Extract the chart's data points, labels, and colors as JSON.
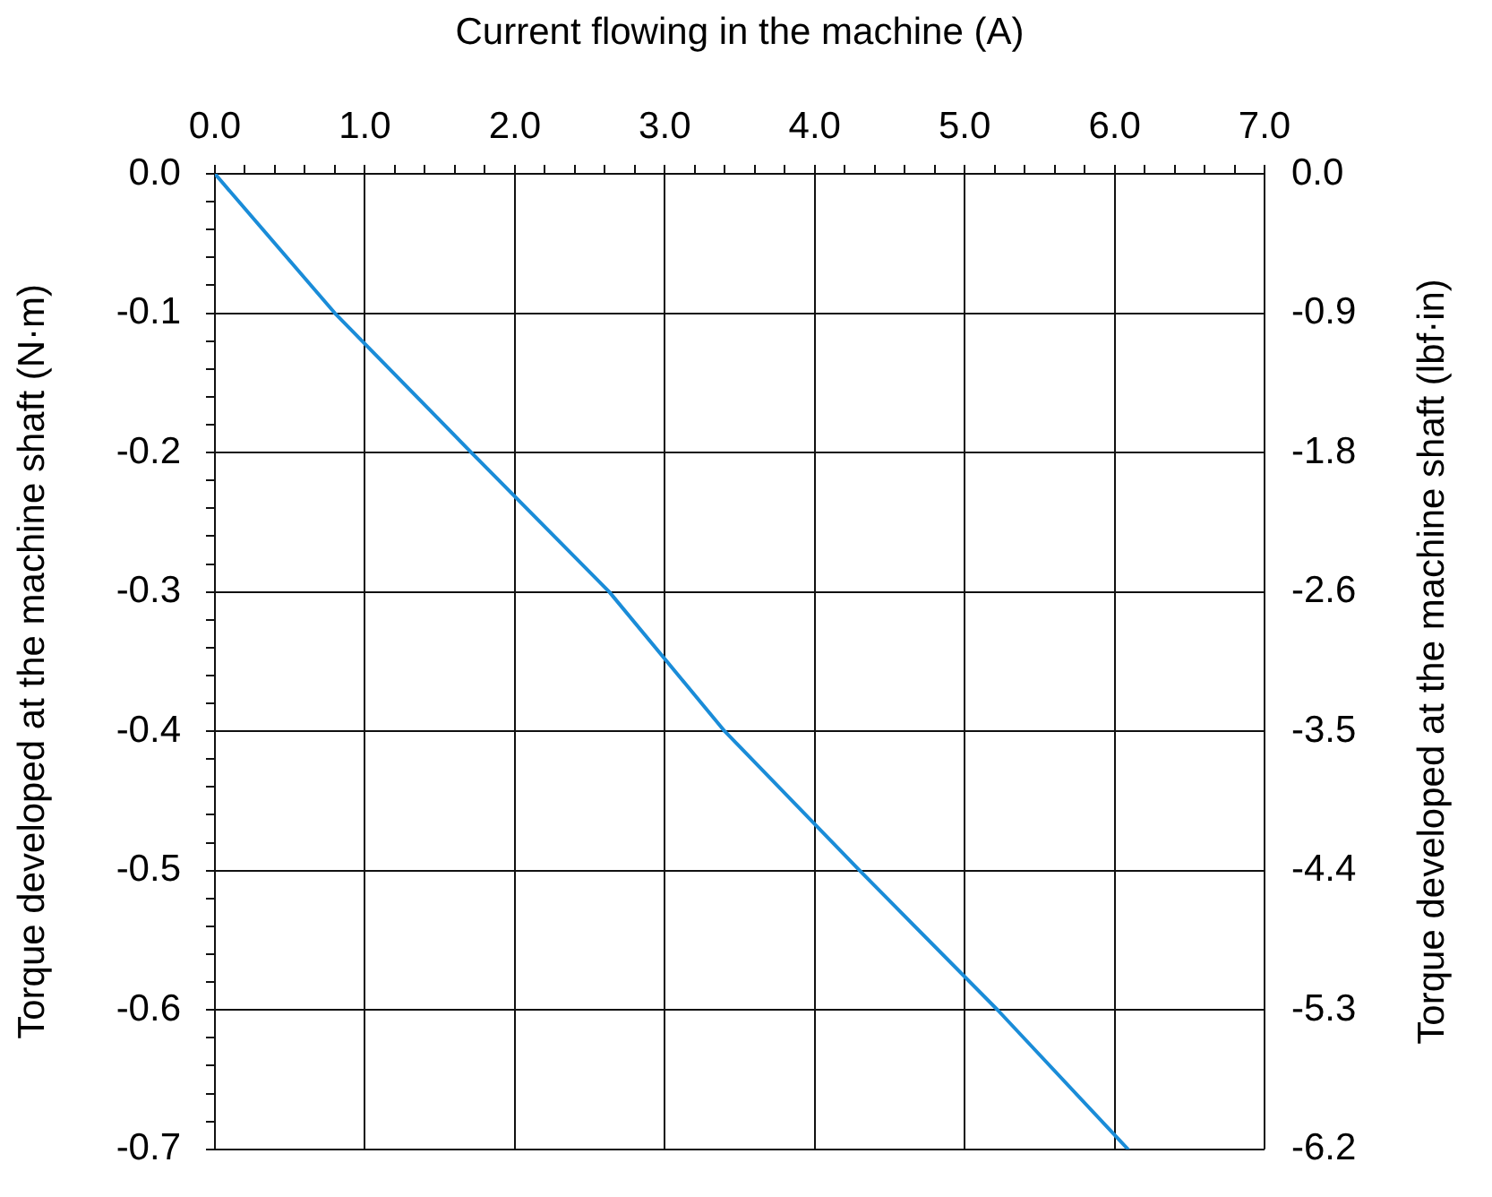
{
  "chart_data": {
    "type": "line",
    "xlabel": "Current flowing in the machine (A)",
    "ylabel": "Torque developed at the machine shaft (N·m)",
    "y2label": "Torque developed at the machine shaft (lbf·in)",
    "x": [
      0,
      0.8,
      1.71,
      2.63,
      3.4,
      4.3,
      5.22,
      6.09
    ],
    "series": [
      {
        "color": "#1a8cd8",
        "values": [
          0,
          -0.1,
          -0.2,
          -0.3,
          -0.4,
          -0.5,
          -0.6,
          -0.7
        ]
      }
    ],
    "xlim": [
      0,
      7
    ],
    "xticks": [
      {
        "value": 0,
        "label": "0.0"
      },
      {
        "value": 0.2,
        "label": null
      },
      {
        "value": 0.4,
        "label": null
      },
      {
        "value": 0.6,
        "label": null
      },
      {
        "value": 0.8,
        "label": null
      },
      {
        "value": 1,
        "label": "1.0"
      },
      {
        "value": 1.2,
        "label": null
      },
      {
        "value": 1.4,
        "label": null
      },
      {
        "value": 1.6,
        "label": null
      },
      {
        "value": 1.8,
        "label": null
      },
      {
        "value": 2,
        "label": "2.0"
      },
      {
        "value": 2.2,
        "label": null
      },
      {
        "value": 2.4,
        "label": null
      },
      {
        "value": 2.6,
        "label": null
      },
      {
        "value": 2.8,
        "label": null
      },
      {
        "value": 3,
        "label": "3.0"
      },
      {
        "value": 3.2,
        "label": null
      },
      {
        "value": 3.4,
        "label": null
      },
      {
        "value": 3.6,
        "label": null
      },
      {
        "value": 3.8,
        "label": null
      },
      {
        "value": 4,
        "label": "4.0"
      },
      {
        "value": 4.2,
        "label": null
      },
      {
        "value": 4.4,
        "label": null
      },
      {
        "value": 4.6,
        "label": null
      },
      {
        "value": 4.8,
        "label": null
      },
      {
        "value": 5,
        "label": "5.0"
      },
      {
        "value": 5.2,
        "label": null
      },
      {
        "value": 5.4,
        "label": null
      },
      {
        "value": 5.6,
        "label": null
      },
      {
        "value": 5.8,
        "label": null
      },
      {
        "value": 6,
        "label": "6.0"
      },
      {
        "value": 6.2,
        "label": null
      },
      {
        "value": 6.4,
        "label": null
      },
      {
        "value": 6.6,
        "label": null
      },
      {
        "value": 6.8,
        "label": null
      },
      {
        "value": 7,
        "label": "7.0"
      }
    ],
    "ylim": [
      -0.7,
      0
    ],
    "yticks": [
      {
        "value": 0,
        "label": "0.0"
      },
      {
        "value": -0.02,
        "label": null
      },
      {
        "value": -0.04,
        "label": null
      },
      {
        "value": -0.06,
        "label": null
      },
      {
        "value": -0.08,
        "label": null
      },
      -0.1,
      {
        "value": -0.12,
        "label": null
      },
      {
        "value": -0.14,
        "label": null
      },
      {
        "value": -0.16,
        "label": null
      },
      {
        "value": -0.18,
        "label": null
      },
      -0.2,
      {
        "value": -0.22,
        "label": null
      },
      {
        "value": -0.24,
        "label": null
      },
      {
        "value": -0.26,
        "label": null
      },
      {
        "value": -0.28,
        "label": null
      },
      -0.3,
      {
        "value": -0.32,
        "label": null
      },
      {
        "value": -0.34,
        "label": null
      },
      {
        "value": -0.36,
        "label": null
      },
      {
        "value": -0.38,
        "label": null
      },
      -0.4,
      {
        "value": -0.42,
        "label": null
      },
      {
        "value": -0.44,
        "label": null
      },
      {
        "value": -0.46,
        "label": null
      },
      {
        "value": -0.48,
        "label": null
      },
      -0.5,
      {
        "value": -0.52,
        "label": null
      },
      {
        "value": -0.54,
        "label": null
      },
      {
        "value": -0.56,
        "label": null
      },
      {
        "value": -0.58,
        "label": null
      },
      -0.6,
      {
        "value": -0.62,
        "label": null
      },
      {
        "value": -0.64,
        "label": null
      },
      {
        "value": -0.66,
        "label": null
      },
      {
        "value": -0.68,
        "label": null
      },
      -0.7
    ],
    "y2lim": [
      -6.174,
      0
    ],
    "y2ticks": [
      {
        "value": 0,
        "label": "0.0"
      },
      {
        "value": -0.882,
        "label": "-0.9"
      },
      {
        "value": -1.764,
        "label": "-1.8"
      },
      {
        "value": -2.646,
        "label": "-2.6"
      },
      {
        "value": -3.528,
        "label": "-3.5"
      },
      {
        "value": -4.41,
        "label": "-4.4"
      },
      {
        "value": -5.292,
        "label": "-5.3"
      },
      {
        "value": -6.174,
        "label": "-6.2"
      }
    ],
    "grid": true,
    "legend": false,
    "marker": "none",
    "line_style": "solid"
  }
}
